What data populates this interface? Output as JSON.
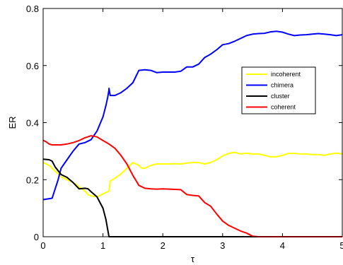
{
  "chart_data": {
    "type": "line",
    "xlabel": "τ",
    "ylabel": "ER",
    "xlim": [
      0,
      5
    ],
    "ylim": [
      0,
      0.8
    ],
    "xticks": [
      0,
      1,
      2,
      3,
      4,
      5
    ],
    "xtick_labels": [
      "0",
      "1",
      "2",
      "3",
      "4",
      "5"
    ],
    "yticks": [
      0,
      0.2,
      0.4,
      0.6,
      0.8
    ],
    "ytick_labels": [
      "0",
      "0.2",
      "0.4",
      "0.6",
      "0.8"
    ],
    "grid": false,
    "legend_position": "center-right",
    "series": [
      {
        "name": "incoherent",
        "color": "#ffff00",
        "points": [
          [
            0,
            0.26
          ],
          [
            0.1,
            0.25
          ],
          [
            0.2,
            0.23
          ],
          [
            0.3,
            0.21
          ],
          [
            0.4,
            0.2
          ],
          [
            0.5,
            0.19
          ],
          [
            0.6,
            0.175
          ],
          [
            0.7,
            0.16
          ],
          [
            0.75,
            0.148
          ],
          [
            0.8,
            0.143
          ],
          [
            0.9,
            0.14
          ],
          [
            1.0,
            0.15
          ],
          [
            1.1,
            0.16
          ],
          [
            1.12,
            0.195
          ],
          [
            1.2,
            0.205
          ],
          [
            1.3,
            0.22
          ],
          [
            1.4,
            0.24
          ],
          [
            1.5,
            0.26
          ],
          [
            1.6,
            0.25
          ],
          [
            1.65,
            0.24
          ],
          [
            1.7,
            0.24
          ],
          [
            1.8,
            0.25
          ],
          [
            1.9,
            0.255
          ],
          [
            2.0,
            0.255
          ],
          [
            2.1,
            0.255
          ],
          [
            2.2,
            0.256
          ],
          [
            2.3,
            0.255
          ],
          [
            2.4,
            0.258
          ],
          [
            2.5,
            0.26
          ],
          [
            2.6,
            0.26
          ],
          [
            2.7,
            0.255
          ],
          [
            2.8,
            0.26
          ],
          [
            2.9,
            0.27
          ],
          [
            3.0,
            0.283
          ],
          [
            3.1,
            0.292
          ],
          [
            3.2,
            0.296
          ],
          [
            3.3,
            0.29
          ],
          [
            3.4,
            0.293
          ],
          [
            3.5,
            0.29
          ],
          [
            3.6,
            0.29
          ],
          [
            3.7,
            0.285
          ],
          [
            3.8,
            0.28
          ],
          [
            3.9,
            0.28
          ],
          [
            4.0,
            0.285
          ],
          [
            4.1,
            0.292
          ],
          [
            4.2,
            0.292
          ],
          [
            4.3,
            0.29
          ],
          [
            4.4,
            0.29
          ],
          [
            4.5,
            0.288
          ],
          [
            4.6,
            0.288
          ],
          [
            4.7,
            0.285
          ],
          [
            4.8,
            0.29
          ],
          [
            4.9,
            0.293
          ],
          [
            5.0,
            0.29
          ]
        ]
      },
      {
        "name": "chimera",
        "color": "#0000ff",
        "points": [
          [
            0,
            0.13
          ],
          [
            0.15,
            0.135
          ],
          [
            0.25,
            0.2
          ],
          [
            0.3,
            0.24
          ],
          [
            0.4,
            0.27
          ],
          [
            0.5,
            0.3
          ],
          [
            0.6,
            0.325
          ],
          [
            0.7,
            0.33
          ],
          [
            0.8,
            0.34
          ],
          [
            0.9,
            0.37
          ],
          [
            1.0,
            0.42
          ],
          [
            1.05,
            0.46
          ],
          [
            1.08,
            0.49
          ],
          [
            1.1,
            0.515
          ],
          [
            1.1,
            0.52
          ],
          [
            1.12,
            0.495
          ],
          [
            1.2,
            0.495
          ],
          [
            1.3,
            0.505
          ],
          [
            1.4,
            0.52
          ],
          [
            1.5,
            0.54
          ],
          [
            1.6,
            0.583
          ],
          [
            1.7,
            0.585
          ],
          [
            1.8,
            0.583
          ],
          [
            1.9,
            0.575
          ],
          [
            2.0,
            0.577
          ],
          [
            2.2,
            0.577
          ],
          [
            2.3,
            0.58
          ],
          [
            2.4,
            0.595
          ],
          [
            2.5,
            0.595
          ],
          [
            2.6,
            0.605
          ],
          [
            2.7,
            0.628
          ],
          [
            2.8,
            0.64
          ],
          [
            2.9,
            0.655
          ],
          [
            3.0,
            0.673
          ],
          [
            3.1,
            0.677
          ],
          [
            3.2,
            0.685
          ],
          [
            3.3,
            0.695
          ],
          [
            3.4,
            0.705
          ],
          [
            3.5,
            0.71
          ],
          [
            3.6,
            0.712
          ],
          [
            3.7,
            0.713
          ],
          [
            3.8,
            0.718
          ],
          [
            3.9,
            0.72
          ],
          [
            4.0,
            0.717
          ],
          [
            4.1,
            0.71
          ],
          [
            4.2,
            0.705
          ],
          [
            4.3,
            0.707
          ],
          [
            4.4,
            0.708
          ],
          [
            4.5,
            0.71
          ],
          [
            4.6,
            0.712
          ],
          [
            4.7,
            0.71
          ],
          [
            4.8,
            0.708
          ],
          [
            4.9,
            0.705
          ],
          [
            5.0,
            0.708
          ]
        ]
      },
      {
        "name": "cluster",
        "color": "#000000",
        "points": [
          [
            0,
            0.272
          ],
          [
            0.1,
            0.27
          ],
          [
            0.15,
            0.265
          ],
          [
            0.2,
            0.245
          ],
          [
            0.3,
            0.218
          ],
          [
            0.4,
            0.208
          ],
          [
            0.5,
            0.19
          ],
          [
            0.6,
            0.168
          ],
          [
            0.7,
            0.17
          ],
          [
            0.75,
            0.168
          ],
          [
            0.8,
            0.158
          ],
          [
            0.9,
            0.14
          ],
          [
            1.0,
            0.1
          ],
          [
            1.05,
            0.06
          ],
          [
            1.1,
            0.0
          ],
          [
            1.2,
            0.0
          ],
          [
            2.0,
            0.0
          ],
          [
            3.0,
            0.0
          ],
          [
            4.0,
            0.0
          ],
          [
            5.0,
            0.0
          ]
        ]
      },
      {
        "name": "coherent",
        "color": "#ff0000",
        "points": [
          [
            0,
            0.338
          ],
          [
            0.05,
            0.333
          ],
          [
            0.1,
            0.325
          ],
          [
            0.15,
            0.322
          ],
          [
            0.2,
            0.322
          ],
          [
            0.3,
            0.322
          ],
          [
            0.4,
            0.325
          ],
          [
            0.5,
            0.33
          ],
          [
            0.6,
            0.337
          ],
          [
            0.7,
            0.347
          ],
          [
            0.8,
            0.354
          ],
          [
            0.9,
            0.35
          ],
          [
            1.0,
            0.337
          ],
          [
            1.1,
            0.325
          ],
          [
            1.2,
            0.31
          ],
          [
            1.3,
            0.285
          ],
          [
            1.4,
            0.255
          ],
          [
            1.5,
            0.215
          ],
          [
            1.6,
            0.18
          ],
          [
            1.7,
            0.17
          ],
          [
            1.8,
            0.168
          ],
          [
            1.9,
            0.167
          ],
          [
            2.0,
            0.168
          ],
          [
            2.1,
            0.167
          ],
          [
            2.2,
            0.166
          ],
          [
            2.3,
            0.165
          ],
          [
            2.4,
            0.148
          ],
          [
            2.5,
            0.145
          ],
          [
            2.6,
            0.143
          ],
          [
            2.7,
            0.12
          ],
          [
            2.8,
            0.107
          ],
          [
            2.9,
            0.08
          ],
          [
            3.0,
            0.055
          ],
          [
            3.1,
            0.04
          ],
          [
            3.2,
            0.03
          ],
          [
            3.3,
            0.02
          ],
          [
            3.4,
            0.013
          ],
          [
            3.5,
            0.002
          ],
          [
            3.6,
            0.0
          ],
          [
            4.0,
            0.0
          ],
          [
            5.0,
            0.0
          ]
        ]
      }
    ]
  }
}
